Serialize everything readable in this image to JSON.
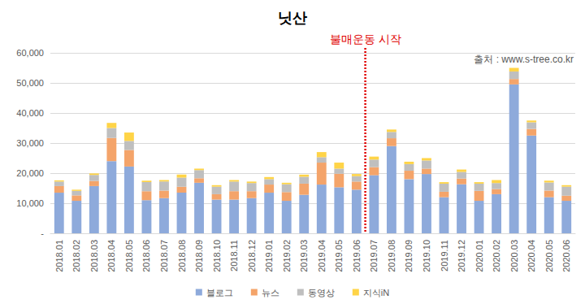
{
  "chart_data": {
    "type": "bar",
    "title": "닛산",
    "annotations": [
      {
        "text": "불매운동 시작",
        "after": "2019.06",
        "color": "#e00000"
      }
    ],
    "source": "출처 : www.s-tree.co.kr",
    "categories": [
      "2018.01",
      "2018.02",
      "2018.03",
      "2018.04",
      "2018.05",
      "2018.06",
      "2018.07",
      "2018.08",
      "2018.09",
      "2018.10",
      "2018.11",
      "2018.12",
      "2019.01",
      "2019.02",
      "2019.03",
      "2019.04",
      "2019.05",
      "2019.06",
      "2019.07",
      "2019.08",
      "2019.09",
      "2019.10",
      "2019.11",
      "2019.12",
      "2020.01",
      "2020.02",
      "2020.03",
      "2020.04",
      "2020.05",
      "2020.06"
    ],
    "series": [
      {
        "name": "블로그",
        "color": "#8eaadb",
        "values": [
          13500,
          10800,
          15700,
          24000,
          22200,
          11000,
          11700,
          13500,
          16800,
          11200,
          11200,
          11700,
          13500,
          10800,
          12800,
          16200,
          15300,
          14500,
          19300,
          29000,
          18000,
          19700,
          12000,
          16300,
          10800,
          13000,
          49500,
          32500,
          12000,
          10800
        ]
      },
      {
        "name": "뉴스",
        "color": "#f4a46a",
        "values": [
          2200,
          1800,
          1700,
          7700,
          5500,
          3000,
          2500,
          2000,
          1500,
          1800,
          2800,
          2300,
          2700,
          2900,
          3700,
          7300,
          4500,
          2700,
          2700,
          2600,
          2800,
          1800,
          1800,
          1900,
          3300,
          1700,
          1800,
          2200,
          2200,
          1700
        ]
      },
      {
        "name": "동영상",
        "color": "#bfbfbf",
        "values": [
          1500,
          1500,
          2000,
          3300,
          3000,
          3000,
          3000,
          3000,
          2700,
          2500,
          3200,
          2700,
          1800,
          2600,
          2300,
          1800,
          1700,
          1800,
          2500,
          2100,
          2200,
          2700,
          2700,
          2200,
          2400,
          2000,
          2500,
          2200,
          2700,
          3000
        ]
      },
      {
        "name": "지식iN",
        "color": "#ffd447",
        "values": [
          400,
          400,
          500,
          1700,
          2800,
          500,
          500,
          1000,
          500,
          500,
          500,
          500,
          700,
          500,
          700,
          1700,
          2000,
          700,
          1000,
          800,
          800,
          800,
          500,
          800,
          500,
          1000,
          1200,
          600,
          600,
          500
        ]
      }
    ],
    "ylim": [
      0,
      60000
    ],
    "yticks": [
      {
        "value": 0,
        "label": "-"
      },
      {
        "value": 10000,
        "label": "10,000"
      },
      {
        "value": 20000,
        "label": "20,000"
      },
      {
        "value": 30000,
        "label": "30,000"
      },
      {
        "value": 40000,
        "label": "40,000"
      },
      {
        "value": 50000,
        "label": "50,000"
      },
      {
        "value": 60000,
        "label": "60,000"
      }
    ],
    "stacked": true,
    "grid": true,
    "legend": "bottom"
  }
}
